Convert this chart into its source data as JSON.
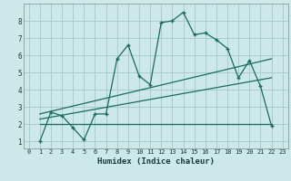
{
  "xlabel": "Humidex (Indice chaleur)",
  "ylabel": "",
  "bg_color": "#cce8e8",
  "grid_color": "#aacccc",
  "line_color": "#1a6b5a",
  "xlim": [
    -0.5,
    23.5
  ],
  "ylim": [
    0.6,
    9.0
  ],
  "xticks": [
    0,
    1,
    2,
    3,
    4,
    5,
    6,
    7,
    8,
    9,
    10,
    11,
    12,
    13,
    14,
    15,
    16,
    17,
    18,
    19,
    20,
    21,
    22,
    23
  ],
  "yticks": [
    1,
    2,
    3,
    4,
    5,
    6,
    7,
    8
  ],
  "main_x": [
    1,
    2,
    3,
    4,
    5,
    6,
    7,
    8,
    9,
    10,
    11,
    12,
    13,
    14,
    15,
    16,
    17,
    18,
    19,
    20,
    21,
    22
  ],
  "main_y": [
    1.0,
    2.7,
    2.5,
    1.8,
    1.1,
    2.6,
    2.6,
    5.8,
    6.6,
    4.8,
    4.3,
    7.9,
    8.0,
    8.5,
    7.2,
    7.3,
    6.9,
    6.4,
    4.7,
    5.7,
    4.2,
    1.9
  ],
  "trend1_x": [
    1,
    22
  ],
  "trend1_y": [
    2.6,
    5.8
  ],
  "trend2_x": [
    1,
    22
  ],
  "trend2_y": [
    2.3,
    4.7
  ],
  "trend3_x": [
    1,
    22
  ],
  "trend3_y": [
    2.0,
    2.0
  ]
}
